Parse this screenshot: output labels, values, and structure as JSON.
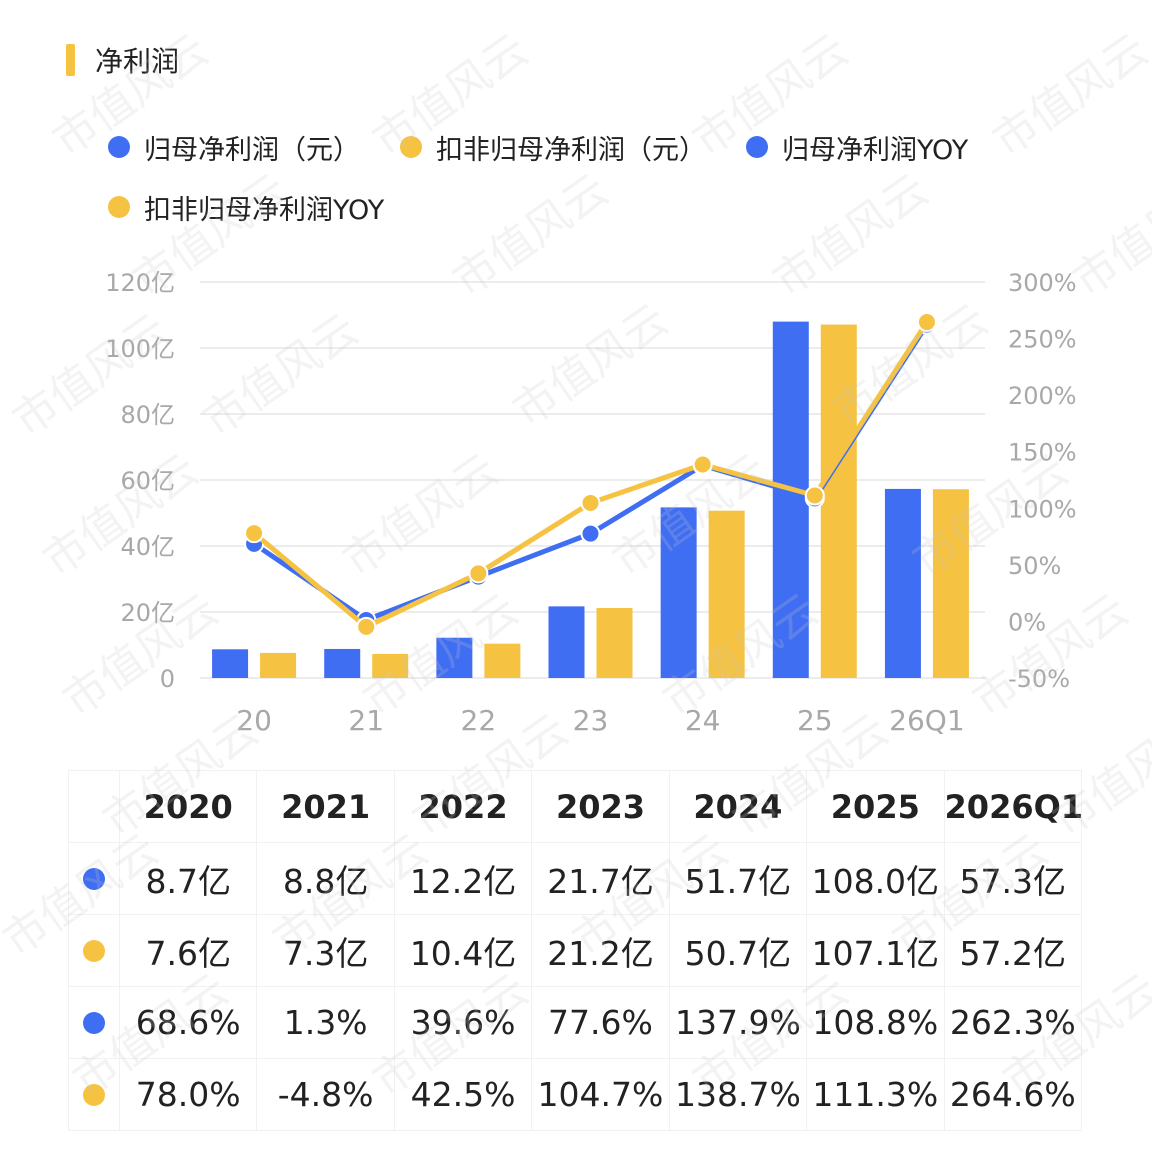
{
  "header": {
    "title": "净利润"
  },
  "colors": {
    "blue": "#3f6ef2",
    "yellow": "#f5c242",
    "accent": "#f5c242"
  },
  "legend": [
    {
      "label": "归母净利润（元）",
      "color": "#3f6ef2"
    },
    {
      "label": "扣非归母净利润（元）",
      "color": "#f5c242"
    },
    {
      "label": "归母净利润YOY",
      "color": "#3f6ef2"
    },
    {
      "label": "扣非归母净利润YOY",
      "color": "#f5c242"
    }
  ],
  "chart_data": {
    "type": "bar",
    "categories": [
      "20",
      "21",
      "22",
      "23",
      "24",
      "25",
      "26Q1"
    ],
    "series": [
      {
        "name": "归母净利润（元）",
        "kind": "bar",
        "axis": "left",
        "color": "#3f6ef2",
        "values": [
          8.7,
          8.8,
          12.2,
          21.7,
          51.7,
          108.0,
          57.3
        ]
      },
      {
        "name": "扣非归母净利润（元）",
        "kind": "bar",
        "axis": "left",
        "color": "#f5c242",
        "values": [
          7.6,
          7.3,
          10.4,
          21.2,
          50.7,
          107.1,
          57.2
        ]
      },
      {
        "name": "归母净利润YOY",
        "kind": "line",
        "axis": "right",
        "color": "#3f6ef2",
        "values": [
          68.6,
          1.3,
          39.6,
          77.6,
          137.9,
          108.8,
          262.3
        ]
      },
      {
        "name": "扣非归母净利润YOY",
        "kind": "line",
        "axis": "right",
        "color": "#f5c242",
        "values": [
          78.0,
          -4.8,
          42.5,
          104.7,
          138.7,
          111.3,
          264.6
        ]
      }
    ],
    "left_axis": {
      "ylim": [
        0,
        120
      ],
      "ticks": [
        0,
        20,
        40,
        60,
        80,
        100,
        120
      ],
      "tick_labels": [
        "0",
        "20亿",
        "40亿",
        "60亿",
        "80亿",
        "100亿",
        "120亿"
      ]
    },
    "right_axis": {
      "ylim": [
        -50,
        300
      ],
      "ticks": [
        -50,
        0,
        50,
        100,
        150,
        200,
        250,
        300
      ],
      "tick_labels": [
        "-50%",
        "0%",
        "50%",
        "100%",
        "150%",
        "200%",
        "250%",
        "300%"
      ]
    },
    "grid": true,
    "legend_position": "top-left"
  },
  "table": {
    "headers": [
      "2020",
      "2021",
      "2022",
      "2023",
      "2024",
      "2025",
      "2026Q1"
    ],
    "rows": [
      {
        "color": "#3f6ef2",
        "cells": [
          "8.7亿",
          "8.8亿",
          "12.2亿",
          "21.7亿",
          "51.7亿",
          "108.0亿",
          "57.3亿"
        ]
      },
      {
        "color": "#f5c242",
        "cells": [
          "7.6亿",
          "7.3亿",
          "10.4亿",
          "21.2亿",
          "50.7亿",
          "107.1亿",
          "57.2亿"
        ]
      },
      {
        "color": "#3f6ef2",
        "cells": [
          "68.6%",
          "1.3%",
          "39.6%",
          "77.6%",
          "137.9%",
          "108.8%",
          "262.3%"
        ]
      },
      {
        "color": "#f5c242",
        "cells": [
          "78.0%",
          "-4.8%",
          "42.5%",
          "104.7%",
          "138.7%",
          "111.3%",
          "264.6%"
        ]
      }
    ]
  },
  "watermark": "市值风云"
}
